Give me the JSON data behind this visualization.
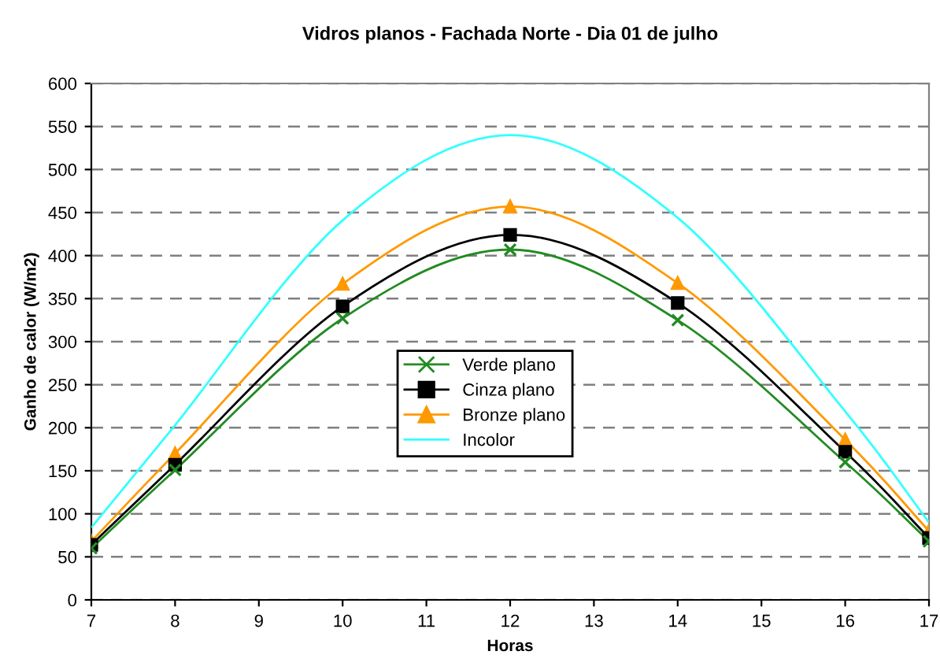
{
  "chart_data": {
    "type": "line",
    "title": "Vidros planos - Fachada Norte - Dia 01 de julho",
    "xlabel": "Horas",
    "ylabel": "Ganho de calor (W/m2)",
    "x": [
      7,
      8,
      10,
      12,
      14,
      16,
      17
    ],
    "series": [
      {
        "name": "Verde plano",
        "color": "#228b22",
        "marker": "cross",
        "values": [
          60,
          151,
          327,
          407,
          325,
          160,
          68
        ]
      },
      {
        "name": "Cinza plano",
        "color": "#000000",
        "marker": "square",
        "values": [
          64,
          157,
          341,
          424,
          345,
          172,
          72
        ]
      },
      {
        "name": "Bronze plano",
        "color": "#ff9900",
        "marker": "triangle",
        "values": [
          68,
          170,
          367,
          457,
          368,
          186,
          80
        ]
      },
      {
        "name": "Incolor",
        "color": "#33ffff",
        "marker": "none",
        "values": [
          84,
          203,
          441,
          540,
          444,
          219,
          90
        ]
      }
    ],
    "xlim": [
      7,
      17
    ],
    "xticks": [
      7,
      8,
      9,
      10,
      11,
      12,
      13,
      14,
      15,
      16,
      17
    ],
    "ylim": [
      0,
      600
    ],
    "yticks": [
      0,
      50,
      100,
      150,
      200,
      250,
      300,
      350,
      400,
      450,
      500,
      550,
      600
    ],
    "grid": "y",
    "legend": "center",
    "line_style": "solid"
  }
}
